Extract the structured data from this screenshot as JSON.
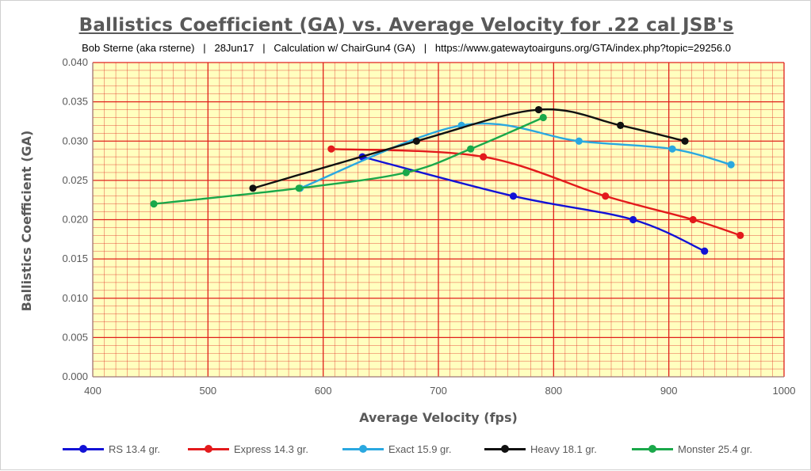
{
  "chart_data": {
    "type": "line",
    "title": "Ballistics Coefficient (GA) vs. Average Velocity for .22 cal JSB's",
    "subtitle": "Bob Sterne (aka rsterne)   |   28Jun17   |   Calculation w/ ChairGun4 (GA)   |   https://www.gatewaytoairguns.org/GTA/index.php?topic=29256.0",
    "xlabel": "Average Velocity (fps)",
    "ylabel": "Ballistics Coefficient (GA)",
    "xlim": [
      400,
      1000
    ],
    "ylim": [
      0,
      0.04
    ],
    "x_ticks": [
      "400",
      "500",
      "600",
      "700",
      "800",
      "900",
      "1000"
    ],
    "y_ticks": [
      "0.000",
      "0.005",
      "0.010",
      "0.015",
      "0.020",
      "0.025",
      "0.030",
      "0.035",
      "0.040"
    ],
    "grid": true,
    "legend_position": "bottom",
    "plot_background": "#ffffbf",
    "grid_color": "#e0201c",
    "series": [
      {
        "name": "RS 13.4 gr.",
        "color": "#1212d6",
        "x": [
          634,
          765,
          869,
          931
        ],
        "y": [
          0.028,
          0.023,
          0.02,
          0.016
        ]
      },
      {
        "name": "Express 14.3 gr.",
        "color": "#e31a1c",
        "x": [
          607,
          739,
          845,
          921,
          962
        ],
        "y": [
          0.029,
          0.028,
          0.023,
          0.02,
          0.018
        ]
      },
      {
        "name": "Exact 15.9 gr.",
        "color": "#2aa8e0",
        "x": [
          580,
          720,
          822,
          903,
          954
        ],
        "y": [
          0.024,
          0.032,
          0.03,
          0.029,
          0.027
        ]
      },
      {
        "name": "Heavy 18.1 gr.",
        "color": "#111111",
        "x": [
          539,
          681,
          787,
          858,
          914
        ],
        "y": [
          0.024,
          0.03,
          0.034,
          0.032,
          0.03
        ]
      },
      {
        "name": "Monster 25.4 gr.",
        "color": "#1aa84a",
        "x": [
          453,
          579,
          672,
          728,
          791
        ],
        "y": [
          0.022,
          0.024,
          0.026,
          0.029,
          0.033
        ]
      }
    ]
  }
}
